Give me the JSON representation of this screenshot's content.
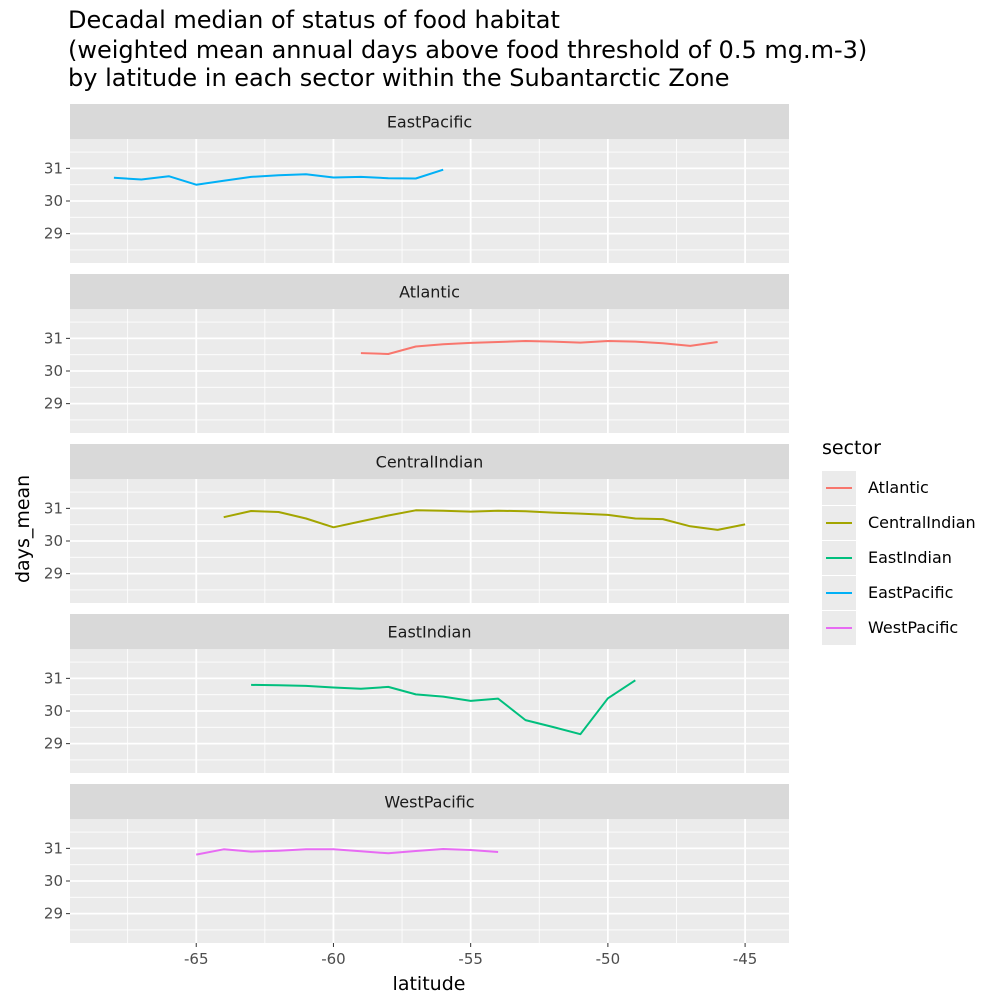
{
  "chart_data": {
    "type": "line",
    "title": [
      "Decadal median of status of food habitat",
      "(weighted mean annual days above food threshold of 0.5 mg.m-3)",
      "by latitude in each sector within the Subantarctic Zone"
    ],
    "xlabel": "latitude",
    "ylabel": "days_mean",
    "xlim": [
      -69.6,
      -43.4
    ],
    "ylim": [
      28.1,
      31.9
    ],
    "x_ticks": [
      -65,
      -60,
      -55,
      -50,
      -45
    ],
    "x_tick_labels": [
      "-65",
      "-60",
      "-55",
      "-50",
      "-45"
    ],
    "y_ticks": [
      29,
      30,
      31
    ],
    "y_tick_labels": [
      "29",
      "30",
      "31"
    ],
    "grid": true,
    "legend_title": "sector",
    "legend_position": "right",
    "panels": [
      "EastPacific",
      "Atlantic",
      "CentralIndian",
      "EastIndian",
      "WestPacific"
    ],
    "series": [
      {
        "name": "Atlantic",
        "color": "#F8766D",
        "x": [
          -59,
          -58,
          -57,
          -56,
          -55,
          -54,
          -53,
          -52,
          -51,
          -50,
          -49,
          -48,
          -47,
          -46
        ],
        "y": [
          30.55,
          30.52,
          30.75,
          30.82,
          30.86,
          30.89,
          30.92,
          30.9,
          30.87,
          30.92,
          30.9,
          30.85,
          30.77,
          30.89
        ]
      },
      {
        "name": "CentralIndian",
        "color": "#A3A500",
        "x": [
          -64,
          -63,
          -62,
          -61,
          -60,
          -59,
          -58,
          -57,
          -56,
          -55,
          -54,
          -53,
          -52,
          -51,
          -50,
          -49,
          -48,
          -47,
          -46,
          -45
        ],
        "y": [
          30.73,
          30.92,
          30.89,
          30.69,
          30.42,
          30.6,
          30.78,
          30.94,
          30.93,
          30.9,
          30.93,
          30.91,
          30.87,
          30.84,
          30.8,
          30.69,
          30.67,
          30.45,
          30.34,
          30.51
        ]
      },
      {
        "name": "EastIndian",
        "color": "#00BF7D",
        "x": [
          -63,
          -62,
          -61,
          -60,
          -59,
          -58,
          -57,
          -56,
          -55,
          -54,
          -53,
          -52,
          -51,
          -50,
          -49
        ],
        "y": [
          30.8,
          30.79,
          30.77,
          30.72,
          30.68,
          30.74,
          30.51,
          30.44,
          30.31,
          30.38,
          29.72,
          29.51,
          29.29,
          30.39,
          30.94
        ]
      },
      {
        "name": "EastPacific",
        "color": "#00B0F6",
        "x": [
          -68,
          -67,
          -66,
          -65,
          -64,
          -63,
          -62,
          -61,
          -60,
          -59,
          -58,
          -57,
          -56
        ],
        "y": [
          30.71,
          30.66,
          30.76,
          30.5,
          30.62,
          30.74,
          30.79,
          30.82,
          30.72,
          30.74,
          30.7,
          30.69,
          30.96
        ]
      },
      {
        "name": "WestPacific",
        "color": "#E76BF3",
        "x": [
          -65,
          -64,
          -63,
          -62,
          -61,
          -60,
          -59,
          -58,
          -57,
          -56,
          -55,
          -54
        ],
        "y": [
          30.81,
          30.97,
          30.9,
          30.93,
          30.97,
          30.97,
          30.91,
          30.85,
          30.92,
          30.98,
          30.95,
          30.89
        ]
      }
    ]
  },
  "legend_order": [
    "Atlantic",
    "CentralIndian",
    "EastIndian",
    "EastPacific",
    "WestPacific"
  ]
}
